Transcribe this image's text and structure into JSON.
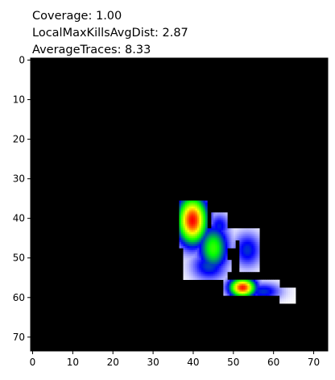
{
  "chart_data": {
    "type": "heatmap",
    "title_lines": [
      "Coverage: 1.00",
      "LocalMaxKillsAvgDist: 2.87",
      "AverageTraces: 8.33"
    ],
    "xlim": [
      -0.5,
      73.5
    ],
    "ylim": [
      73.5,
      -0.5
    ],
    "x_ticks": [
      0,
      10,
      20,
      30,
      40,
      50,
      60,
      70
    ],
    "y_ticks": [
      0,
      10,
      20,
      30,
      40,
      50,
      60,
      70
    ],
    "grid": false,
    "background_color": "#000000",
    "colormap": [
      "#ffffff",
      "#0000ff",
      "#00ff00",
      "#ffff00",
      "#ff0000"
    ],
    "regions": [
      {
        "x0": 36.5,
        "x1": 43.5,
        "y0": 35.5,
        "y1": 42.5
      },
      {
        "x0": 36.5,
        "x1": 41.5,
        "y0": 42.5,
        "y1": 47.5
      },
      {
        "x0": 44.5,
        "x1": 48.5,
        "y0": 38.5,
        "y1": 42.5
      },
      {
        "x0": 41.5,
        "x1": 48.5,
        "y0": 42.5,
        "y1": 49.5
      },
      {
        "x0": 48.5,
        "x1": 56.5,
        "y0": 42.5,
        "y1": 45.5
      },
      {
        "x0": 48.5,
        "x1": 50.5,
        "y0": 45.5,
        "y1": 47.5
      },
      {
        "x0": 51.5,
        "x1": 56.5,
        "y0": 45.5,
        "y1": 53.5
      },
      {
        "x0": 37.5,
        "x1": 46.5,
        "y0": 47.5,
        "y1": 55.5
      },
      {
        "x0": 46.5,
        "x1": 48.5,
        "y0": 49.5,
        "y1": 55.5
      },
      {
        "x0": 48.5,
        "x1": 49.5,
        "y0": 50.5,
        "y1": 53.5
      },
      {
        "x0": 47.5,
        "x1": 61.5,
        "y0": 55.5,
        "y1": 59.5
      },
      {
        "x0": 61.5,
        "x1": 65.5,
        "y0": 57.5,
        "y1": 61.5
      }
    ],
    "hotspots": [
      {
        "x": 39.8,
        "y": 40.5,
        "rx": 2.6,
        "ry": 4.2,
        "intensity": 1.0
      },
      {
        "x": 52.3,
        "y": 57.5,
        "rx": 2.3,
        "ry": 1.7,
        "intensity": 0.98
      },
      {
        "x": 45.0,
        "y": 47.5,
        "rx": 2.6,
        "ry": 4.0,
        "intensity": 0.55
      },
      {
        "x": 44.0,
        "y": 52.0,
        "rx": 3.0,
        "ry": 2.6,
        "intensity": 0.32
      },
      {
        "x": 53.5,
        "y": 48.0,
        "rx": 2.4,
        "ry": 3.0,
        "intensity": 0.3
      },
      {
        "x": 57.5,
        "y": 58.5,
        "rx": 3.0,
        "ry": 1.5,
        "intensity": 0.3
      },
      {
        "x": 46.5,
        "y": 42.0,
        "rx": 1.8,
        "ry": 2.2,
        "intensity": 0.28
      }
    ]
  }
}
